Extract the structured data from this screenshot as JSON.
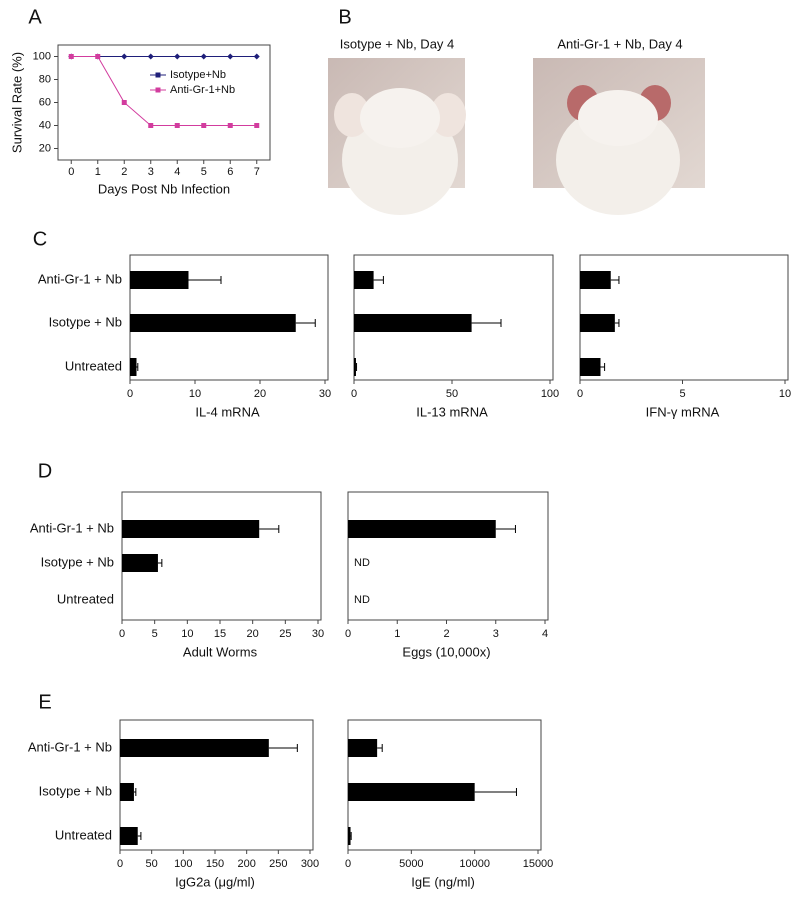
{
  "chart_data": [
    {
      "type": "line",
      "panel": "A",
      "x_label": "Days Post Nb Infection",
      "y_label": "Survival Rate (%)",
      "x": [
        0,
        1,
        2,
        3,
        4,
        5,
        6,
        7
      ],
      "xlim": [
        -0.5,
        7.5
      ],
      "xticks": [
        0,
        1,
        2,
        3,
        4,
        5,
        6,
        7
      ],
      "ylim": [
        10,
        110
      ],
      "yticks": [
        20,
        40,
        60,
        80,
        100
      ],
      "legend": "upper right",
      "series": [
        {
          "name": "Isotype+Nb",
          "color": "#1f1f7a",
          "marker": "diamond",
          "values": [
            100,
            100,
            100,
            100,
            100,
            100,
            100,
            100
          ]
        },
        {
          "name": "Anti-Gr-1+Nb",
          "color": "#d23c9e",
          "marker": "square",
          "values": [
            100,
            100,
            60,
            40,
            40,
            40,
            40,
            40
          ]
        }
      ]
    },
    {
      "type": "image",
      "panel": "B",
      "captions": [
        "Isotype + Nb, Day 4",
        "Anti-Gr-1 + Nb, Day 4"
      ]
    },
    {
      "type": "hbar",
      "panel": "C",
      "categories": [
        "Anti-Gr-1 + Nb",
        "Isotype + Nb",
        "Untreated"
      ],
      "color": "#000000",
      "plots": [
        {
          "x_label": "IL-4 mRNA",
          "xlim": [
            0,
            30
          ],
          "xticks": [
            0,
            10,
            20,
            30
          ],
          "values": [
            9,
            25.5,
            1
          ],
          "errors": [
            5,
            3,
            0.2
          ]
        },
        {
          "x_label": "IL-13 mRNA",
          "xlim": [
            0,
            100
          ],
          "xticks": [
            0,
            50,
            100
          ],
          "values": [
            10,
            60,
            1
          ],
          "errors": [
            5,
            15,
            0.3
          ]
        },
        {
          "x_label": "IFN-γ mRNA",
          "xlim": [
            0,
            10
          ],
          "xticks": [
            0,
            5,
            10
          ],
          "values": [
            1.5,
            1.7,
            1.0
          ],
          "errors": [
            0.4,
            0.2,
            0.2
          ]
        }
      ]
    },
    {
      "type": "hbar",
      "panel": "D",
      "categories": [
        "Anti-Gr-1 + Nb",
        "Isotype + Nb",
        "Untreated"
      ],
      "color": "#000000",
      "plots": [
        {
          "x_label": "Adult Worms",
          "xlim": [
            0,
            30
          ],
          "xticks": [
            0,
            5,
            10,
            15,
            20,
            25,
            30
          ],
          "values": [
            21,
            5.5,
            0
          ],
          "errors": [
            3,
            0.6,
            0
          ]
        },
        {
          "x_label": "Eggs (10,000x)",
          "xlim": [
            0,
            4
          ],
          "xticks": [
            0,
            1,
            2,
            3,
            4
          ],
          "values": [
            3,
            null,
            null
          ],
          "value_labels": [
            null,
            "ND",
            "ND"
          ],
          "errors": [
            0.4,
            null,
            null
          ]
        }
      ]
    },
    {
      "type": "hbar",
      "panel": "E",
      "categories": [
        "Anti-Gr-1 + Nb",
        "Isotype + Nb",
        "Untreated"
      ],
      "color": "#000000",
      "plots": [
        {
          "x_label": "IgG2a (μg/ml)",
          "xlim": [
            0,
            300
          ],
          "xticks": [
            0,
            50,
            100,
            150,
            200,
            250,
            300
          ],
          "values": [
            235,
            22,
            28
          ],
          "errors": [
            45,
            3,
            5
          ]
        },
        {
          "x_label": "IgE (ng/ml)",
          "xlim": [
            0,
            15000
          ],
          "xticks": [
            0,
            5000,
            10000,
            15000
          ],
          "values": [
            2300,
            10000,
            200
          ],
          "errors": [
            400,
            3300,
            50
          ]
        }
      ]
    }
  ]
}
